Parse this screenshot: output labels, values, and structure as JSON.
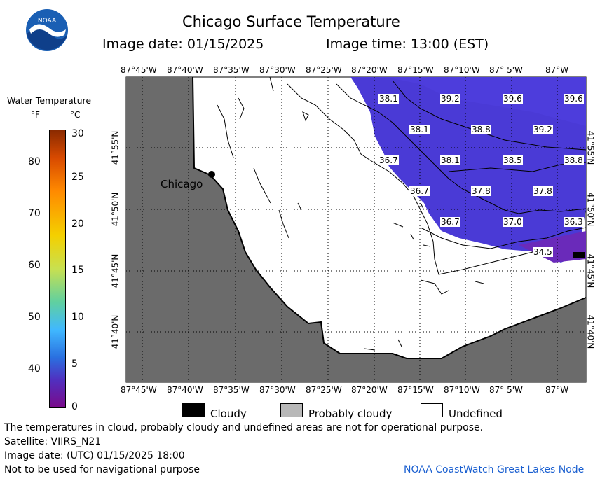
{
  "header": {
    "title": "Chicago Surface Temperature",
    "image_date_label": "Image date: 01/15/2025",
    "image_time_label": "Image time: 13:00 (EST)",
    "logo_text": "NOAA"
  },
  "colorbar": {
    "title": "Water Temperature",
    "unit_f": "°F",
    "unit_c": "°C",
    "f_ticks": [
      "80",
      "70",
      "60",
      "50",
      "40"
    ],
    "c_ticks": [
      "30",
      "25",
      "20",
      "15",
      "10",
      "5",
      "0"
    ]
  },
  "map": {
    "lon_labels": [
      "87°45'W",
      "87°40'W",
      "87°35'W",
      "87°30'W",
      "87°25'W",
      "87°20'W",
      "87°15'W",
      "87°10'W",
      "87° 5'W",
      "87°W"
    ],
    "lat_labels": [
      "41°55'N",
      "41°50'N",
      "41°45'N",
      "41°40'N"
    ],
    "city": "Chicago",
    "temperatures": [
      "38.1",
      "39.2",
      "39.6",
      "39.6",
      "38.1",
      "38.8",
      "39.2",
      "36.7",
      "38.1",
      "38.5",
      "38.8",
      "36.7",
      "37.8",
      "37.8",
      "36.7",
      "37.0",
      "36.3",
      "34.5"
    ],
    "colors": {
      "land": "#6b6b6b",
      "water_cold": "#4a3ad6",
      "undefined": "#ffffff"
    }
  },
  "legend": {
    "cloudy": "Cloudy",
    "probably_cloudy": "Probably cloudy",
    "undefined": "Undefined"
  },
  "footer": {
    "disclaimer": "The temperatures in cloud, probably cloudy and undefined areas are not for operational purpose.",
    "satellite": "Satellite: VIIRS_N21",
    "utc_date": "Image date: (UTC) 01/15/2025  18:00",
    "navigation": "Not to be used for navigational purpose",
    "credit": "NOAA CoastWatch Great Lakes Node"
  }
}
